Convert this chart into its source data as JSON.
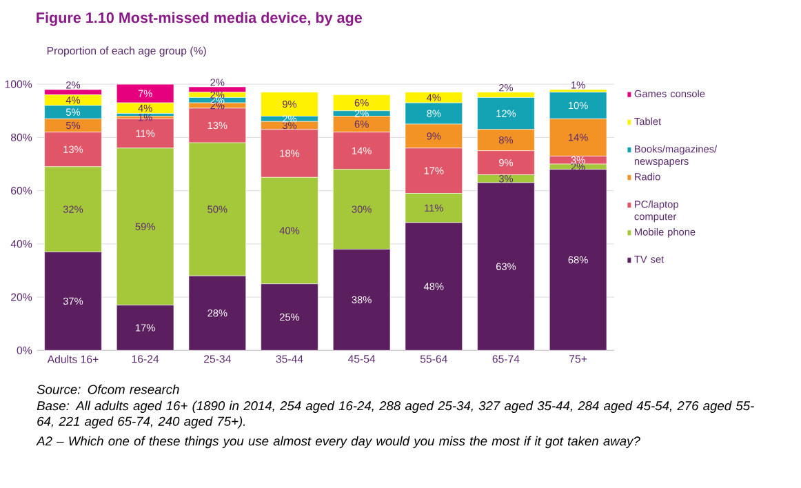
{
  "chart_data": {
    "type": "bar",
    "stacked": true,
    "title": "Figure 1.10     Most-missed media device, by age",
    "ylabel": "Proportion of each age group (%)",
    "categories": [
      "Adults 16+",
      "16-24",
      "25-34",
      "35-44",
      "45-54",
      "55-64",
      "65-74",
      "75+"
    ],
    "ylim": [
      0,
      100
    ],
    "yticks": [
      {
        "value": 0,
        "label": "0%"
      },
      {
        "value": 20,
        "label": "20%"
      },
      {
        "value": 40,
        "label": "40%"
      },
      {
        "value": 60,
        "label": "60%"
      },
      {
        "value": 80,
        "label": "80%"
      },
      {
        "value": 100,
        "label": "100%"
      }
    ],
    "grid": "y",
    "legend": "right",
    "series": [
      {
        "name": "TV set",
        "color": "#5b1e5f",
        "values": [
          37,
          17,
          28,
          25,
          38,
          48,
          63,
          68
        ],
        "value_labels": [
          "37%",
          "17%",
          "28%",
          "25%",
          "38%",
          "48%",
          "63%",
          "68%"
        ]
      },
      {
        "name": "Mobile phone",
        "color": "#a5c83b",
        "values": [
          32,
          59,
          50,
          40,
          30,
          11,
          3,
          2
        ],
        "value_labels": [
          "32%",
          "59%",
          "50%",
          "40%",
          "30%",
          "11%",
          "3%",
          "2%"
        ]
      },
      {
        "name": "PC/laptop computer",
        "color": "#e05668",
        "values": [
          13,
          11,
          13,
          18,
          14,
          17,
          9,
          3
        ],
        "value_labels": [
          "13%",
          "11%",
          "13%",
          "18%",
          "14%",
          "17%",
          "9%",
          "3%"
        ]
      },
      {
        "name": "Radio",
        "color": "#f39325",
        "values": [
          5,
          1,
          2,
          3,
          6,
          9,
          8,
          14
        ],
        "value_labels": [
          "5%",
          "1%",
          "2%",
          "3%",
          "6%",
          "9%",
          "8%",
          "14%"
        ]
      },
      {
        "name": "Books/magazines/ newspapers",
        "color": "#13a3b5",
        "values": [
          5,
          1,
          2,
          2,
          2,
          8,
          12,
          10
        ],
        "value_labels": [
          "5%",
          null,
          "2%",
          "2%",
          "2%",
          "8%",
          "12%",
          "10%"
        ]
      },
      {
        "name": "Tablet",
        "color": "#fff200",
        "values": [
          4,
          4,
          2,
          9,
          6,
          4,
          2,
          1
        ],
        "value_labels": [
          "4%",
          "4%",
          "2%",
          "9%",
          "6%",
          "4%",
          "2%",
          "1%"
        ]
      },
      {
        "name": "Games console",
        "color": "#e6007e",
        "values": [
          2,
          7,
          2,
          null,
          null,
          null,
          null,
          null
        ],
        "value_labels": [
          "2%",
          "7%",
          "2%",
          null,
          null,
          null,
          null,
          null
        ]
      }
    ],
    "annotations": [
      "Source: Ofcom research",
      "Base: All adults aged 16+ (1890 in 2014, 254 aged 16-24, 288 aged 25-34, 327 aged 35-44, 284 aged 45-54, 276 aged 55-64, 221 aged 65-74, 240 aged 75+).",
      "A2 – Which one of these things you use almost every day would you miss the most if it got taken away?"
    ]
  }
}
